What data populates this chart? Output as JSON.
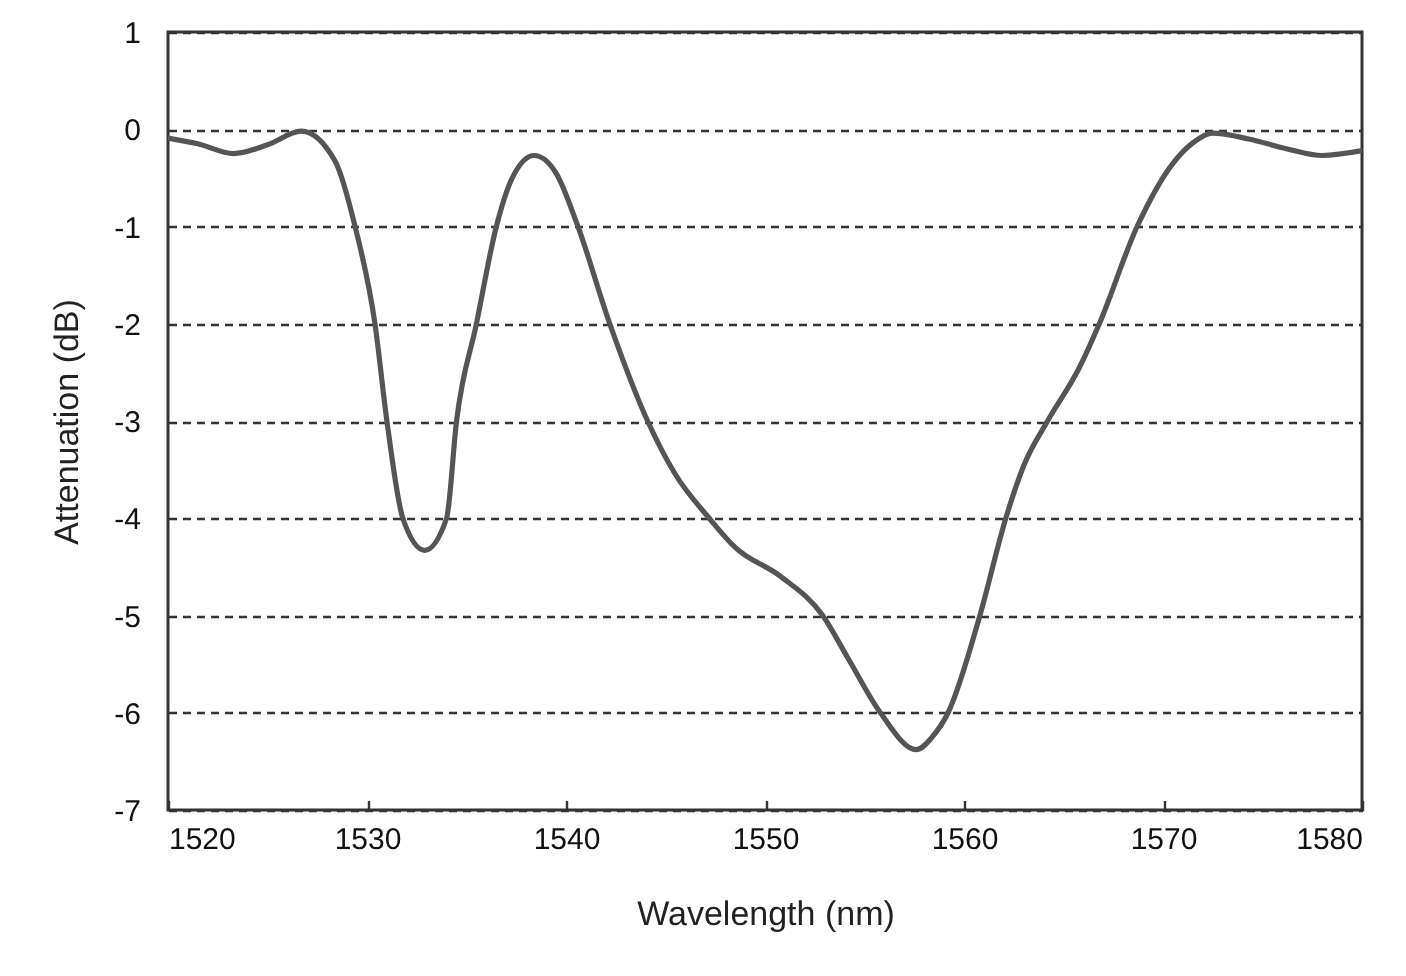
{
  "chart_data": {
    "type": "line",
    "xlabel": "Wavelength (nm)",
    "ylabel": "Attenuation (dB)",
    "x": [
      1520,
      1521.5,
      1523.3,
      1525,
      1526.7,
      1528.4,
      1529.4,
      1530.4,
      1531,
      1531.8,
      1532.9,
      1534,
      1534.5,
      1535.5,
      1536.5,
      1537.3,
      1538.4,
      1539.5,
      1540.6,
      1542.2,
      1544.1,
      1545.5,
      1547.2,
      1548.5,
      1550.8,
      1552.9,
      1554.2,
      1555.8,
      1557.6,
      1558.4,
      1559.2,
      1560.8,
      1562.1,
      1563,
      1564.2,
      1565.8,
      1566.8,
      1568.7,
      1570.5,
      1571.5,
      1572.5,
      1574.3,
      1576.2,
      1578,
      1580
    ],
    "series": [
      {
        "color": "#555555",
        "values": [
          -0.09,
          -0.15,
          -0.25,
          -0.16,
          -0.02,
          -0.33,
          -1,
          -2,
          -3,
          -4,
          -4.33,
          -4,
          -3,
          -2,
          -1,
          -0.5,
          -0.27,
          -0.45,
          -1,
          -2,
          -3,
          -3.55,
          -4,
          -4.3,
          -4.6,
          -5,
          -5.45,
          -6,
          -6.38,
          -6.25,
          -6,
          -5,
          -4,
          -3.46,
          -3,
          -2.45,
          -2,
          -1,
          -0.35,
          -0.14,
          -0.04,
          -0.1,
          -0.2,
          -0.27,
          -0.22
        ]
      }
    ],
    "xlim": [
      1520,
      1580
    ],
    "xticks": [
      1520,
      1530,
      1540,
      1550,
      1560,
      1570,
      1580
    ],
    "ylim": [
      -7,
      1
    ],
    "yticks": [
      -7,
      -6,
      -5,
      -4,
      -3,
      -2,
      -1,
      0,
      1
    ],
    "grid": "y",
    "line_style": "solid"
  }
}
